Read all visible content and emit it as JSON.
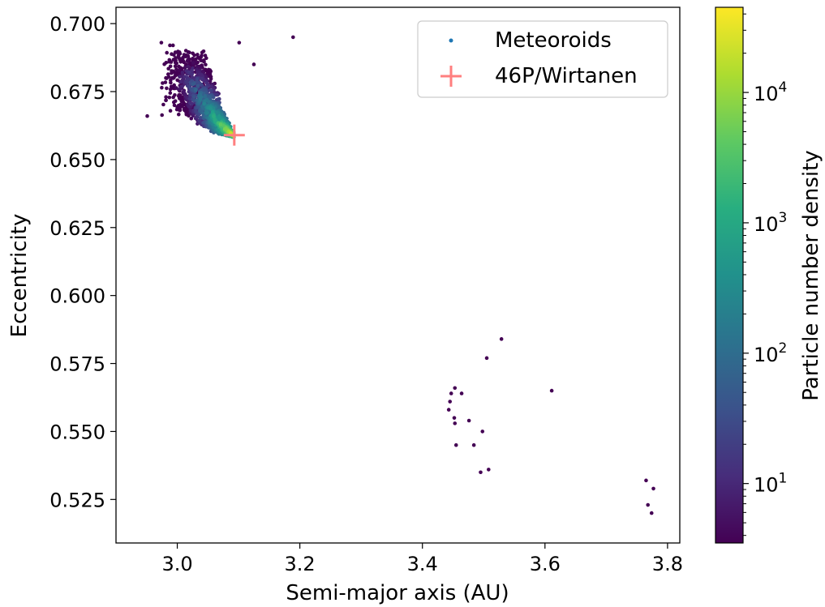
{
  "chart_data": {
    "type": "scatter",
    "xlabel": "Semi-major axis (AU)",
    "ylabel": "Eccentricity",
    "xlim": [
      2.9,
      3.82
    ],
    "ylim": [
      0.509,
      0.706
    ],
    "x_ticks": [
      3.0,
      3.2,
      3.4,
      3.6,
      3.8
    ],
    "x_tick_labels": [
      "3.0",
      "3.2",
      "3.4",
      "3.6",
      "3.8"
    ],
    "y_ticks": [
      0.525,
      0.55,
      0.575,
      0.6,
      0.625,
      0.65,
      0.675,
      0.7
    ],
    "y_tick_labels": [
      "0.525",
      "0.550",
      "0.575",
      "0.600",
      "0.625",
      "0.650",
      "0.675",
      "0.700"
    ],
    "grid": false,
    "legend": {
      "placement": "top-right",
      "entries": [
        {
          "label": "Meteoroids",
          "marker": "dot",
          "color": "#1f77b4"
        },
        {
          "label": "46P/Wirtanen",
          "marker": "plus",
          "color": "#ff7f7f"
        }
      ]
    },
    "colorbar": {
      "label": "Particle number density",
      "scale": "log",
      "colormap": "viridis",
      "range": [
        3.5,
        45000
      ],
      "ticks": [
        10,
        100,
        1000,
        10000
      ],
      "tick_labels": [
        {
          "base": "10",
          "exp": "1"
        },
        {
          "base": "10",
          "exp": "2"
        },
        {
          "base": "10",
          "exp": "3"
        },
        {
          "base": "10",
          "exp": "4"
        }
      ]
    },
    "comet": {
      "name": "46P/Wirtanen",
      "a": 3.093,
      "e": 0.659
    },
    "meteoroid_cluster": {
      "description_points": [
        {
          "a": 3.092,
          "e": 0.659,
          "density": 40000
        },
        {
          "a": 3.08,
          "e": 0.661,
          "density": 12000
        },
        {
          "a": 3.07,
          "e": 0.663,
          "density": 4000
        },
        {
          "a": 3.06,
          "e": 0.666,
          "density": 1500
        },
        {
          "a": 3.05,
          "e": 0.669,
          "density": 500
        },
        {
          "a": 3.04,
          "e": 0.672,
          "density": 200
        },
        {
          "a": 3.03,
          "e": 0.676,
          "density": 80
        },
        {
          "a": 3.02,
          "e": 0.68,
          "density": 30
        },
        {
          "a": 3.0,
          "e": 0.678,
          "density": 10
        }
      ]
    },
    "outliers": [
      {
        "a": 2.951,
        "e": 0.666
      },
      {
        "a": 2.974,
        "e": 0.693
      },
      {
        "a": 2.988,
        "e": 0.692
      },
      {
        "a": 2.993,
        "e": 0.692
      },
      {
        "a": 3.101,
        "e": 0.693
      },
      {
        "a": 3.125,
        "e": 0.685
      },
      {
        "a": 3.189,
        "e": 0.695
      },
      {
        "a": 3.529,
        "e": 0.584
      },
      {
        "a": 3.505,
        "e": 0.577
      },
      {
        "a": 3.611,
        "e": 0.565
      },
      {
        "a": 3.447,
        "e": 0.564
      },
      {
        "a": 3.453,
        "e": 0.566
      },
      {
        "a": 3.445,
        "e": 0.561
      },
      {
        "a": 3.464,
        "e": 0.564
      },
      {
        "a": 3.443,
        "e": 0.558
      },
      {
        "a": 3.452,
        "e": 0.555
      },
      {
        "a": 3.453,
        "e": 0.553
      },
      {
        "a": 3.476,
        "e": 0.554
      },
      {
        "a": 3.498,
        "e": 0.55
      },
      {
        "a": 3.455,
        "e": 0.545
      },
      {
        "a": 3.484,
        "e": 0.545
      },
      {
        "a": 3.495,
        "e": 0.535
      },
      {
        "a": 3.508,
        "e": 0.536
      },
      {
        "a": 3.765,
        "e": 0.532
      },
      {
        "a": 3.777,
        "e": 0.529
      },
      {
        "a": 3.768,
        "e": 0.523
      },
      {
        "a": 3.774,
        "e": 0.52
      }
    ]
  }
}
